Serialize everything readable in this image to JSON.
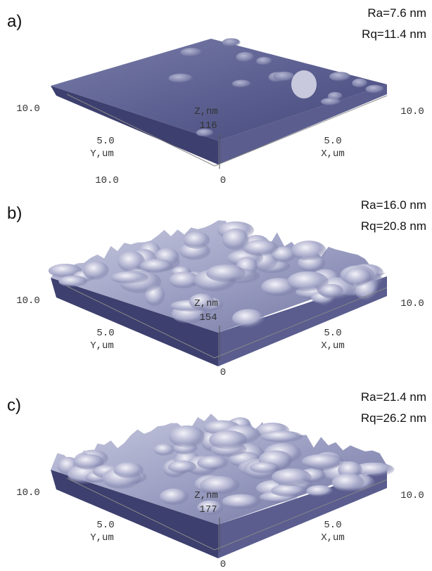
{
  "panels": [
    {
      "label": "a)",
      "ra": "Ra=7.6 nm",
      "rq": "Rq=11.4 nm",
      "y_left": "10.0",
      "y_mid": "5.0",
      "y_axis": "Y,um",
      "y_end": "10.0",
      "z_axis": "Z,nm",
      "z_max": "116",
      "z_min": "0",
      "x_mid": "5.0",
      "x_axis": "X,um",
      "x_end": "10.0"
    },
    {
      "label": "b)",
      "ra": "Ra=16.0 nm",
      "rq": "Rq=20.8 nm",
      "y_left": "10.0",
      "y_mid": "5.0",
      "y_axis": "Y,um",
      "z_axis": "Z,nm",
      "z_max": "154",
      "z_min": "0",
      "x_mid": "5.0",
      "x_axis": "X,um",
      "x_end": "10.0"
    },
    {
      "label": "c)",
      "ra": "Ra=21.4 nm",
      "rq": "Rq=26.2 nm",
      "y_left": "10.0",
      "y_mid": "5.0",
      "y_axis": "Y,um",
      "z_axis": "Z,nm",
      "z_max": "177",
      "z_min": "0",
      "x_mid": "5.0",
      "x_axis": "X,um",
      "x_end": "10.0"
    }
  ]
}
